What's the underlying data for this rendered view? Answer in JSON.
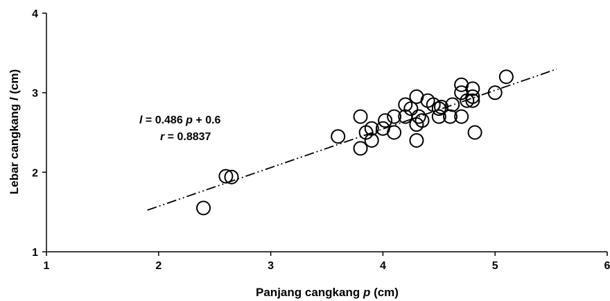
{
  "chart_data": {
    "type": "scatter",
    "xlabel": {
      "prefix": "Panjang cangkang ",
      "var": "p",
      "suffix": " (cm)"
    },
    "ylabel": {
      "prefix": "Lebar cangkang ",
      "var": "l",
      "suffix": " (cm)"
    },
    "xlim": [
      1,
      6
    ],
    "ylim": [
      1,
      4
    ],
    "x_ticks": [
      "1",
      "2",
      "3",
      "4",
      "5",
      "6"
    ],
    "y_ticks": [
      "1",
      "2",
      "3",
      "4"
    ],
    "grid": false,
    "points": [
      {
        "x": 2.4,
        "y": 1.55
      },
      {
        "x": 2.6,
        "y": 1.95
      },
      {
        "x": 2.65,
        "y": 1.94
      },
      {
        "x": 3.6,
        "y": 2.45
      },
      {
        "x": 3.8,
        "y": 2.3
      },
      {
        "x": 3.8,
        "y": 2.7
      },
      {
        "x": 3.85,
        "y": 2.5
      },
      {
        "x": 3.9,
        "y": 2.55
      },
      {
        "x": 3.9,
        "y": 2.4
      },
      {
        "x": 4.0,
        "y": 2.55
      },
      {
        "x": 4.02,
        "y": 2.65
      },
      {
        "x": 4.1,
        "y": 2.5
      },
      {
        "x": 4.1,
        "y": 2.7
      },
      {
        "x": 4.2,
        "y": 2.7
      },
      {
        "x": 4.2,
        "y": 2.85
      },
      {
        "x": 4.25,
        "y": 2.8
      },
      {
        "x": 4.3,
        "y": 2.95
      },
      {
        "x": 4.3,
        "y": 2.6
      },
      {
        "x": 4.3,
        "y": 2.4
      },
      {
        "x": 4.32,
        "y": 2.7
      },
      {
        "x": 4.35,
        "y": 2.65
      },
      {
        "x": 4.4,
        "y": 2.9
      },
      {
        "x": 4.45,
        "y": 2.85
      },
      {
        "x": 4.5,
        "y": 2.8
      },
      {
        "x": 4.5,
        "y": 2.7
      },
      {
        "x": 4.52,
        "y": 2.82
      },
      {
        "x": 4.6,
        "y": 2.7
      },
      {
        "x": 4.62,
        "y": 2.85
      },
      {
        "x": 4.7,
        "y": 3.1
      },
      {
        "x": 4.7,
        "y": 3.0
      },
      {
        "x": 4.7,
        "y": 2.7
      },
      {
        "x": 4.75,
        "y": 2.9
      },
      {
        "x": 4.8,
        "y": 3.05
      },
      {
        "x": 4.8,
        "y": 2.95
      },
      {
        "x": 4.8,
        "y": 2.9
      },
      {
        "x": 4.82,
        "y": 2.5
      },
      {
        "x": 5.0,
        "y": 3.0
      },
      {
        "x": 5.1,
        "y": 3.2
      }
    ],
    "trendline": {
      "slope": 0.486,
      "intercept": 0.6,
      "x_range": [
        1.9,
        5.55
      ],
      "style": "dash-dot-dot"
    },
    "annotations": {
      "equation": {
        "var1": "l",
        "eq": " = 0.486 ",
        "var2": "p",
        "rest": " + 0.6"
      },
      "correlation": {
        "var": "r",
        "rest": " = 0.8837"
      }
    }
  }
}
